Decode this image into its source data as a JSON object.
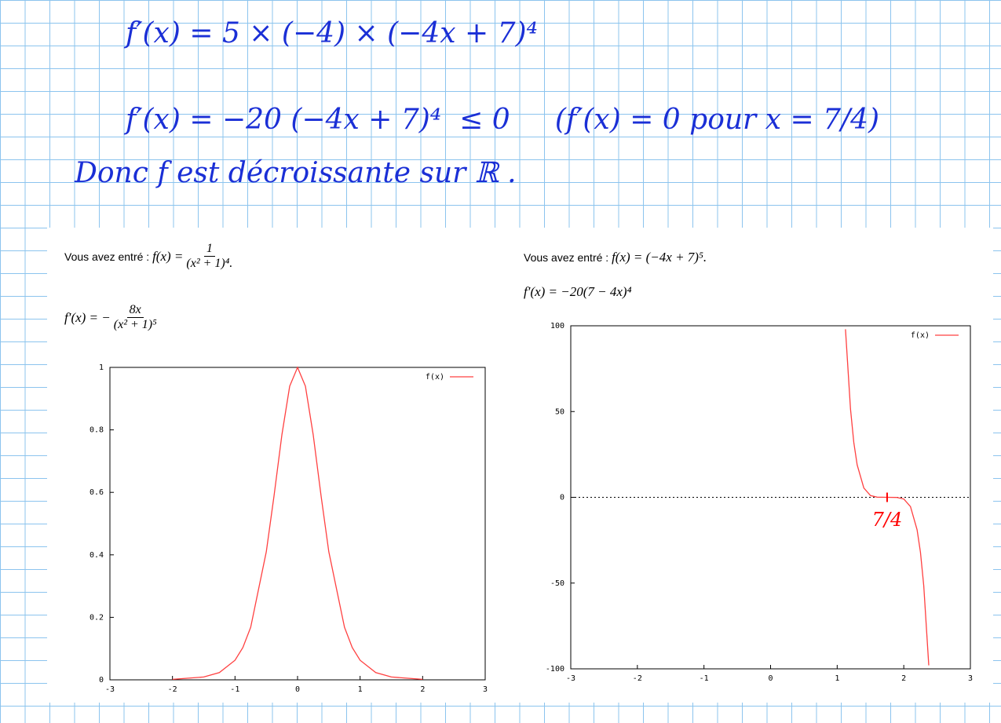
{
  "notes": {
    "lines": [
      "f′(x) = 5 × (−4) × (−4x + 7)⁴",
      "f′(x) = −20 (−4x + 7)⁴  ≤ 0     (f′(x) = 0 pour x = 7/4)",
      "Donc f est décroissante sur ℝ ."
    ]
  },
  "left_panel": {
    "intro": "Vous avez entré : ",
    "function_lhs": "f(x) =",
    "function_num": "1",
    "function_den": "(x² + 1)⁴.",
    "derivative_lhs": "f′(x) = −",
    "derivative_num": "8x",
    "derivative_den": "(x² + 1)⁵"
  },
  "right_panel": {
    "intro": "Vous avez entré : ",
    "function": "f(x) = (−4x + 7)⁵.",
    "derivative": "f′(x) = −20(7 − 4x)⁴"
  },
  "chart_data": [
    {
      "type": "line",
      "xlim": [
        -3,
        3
      ],
      "ylim": [
        0,
        1
      ],
      "xticks": [
        -3,
        -2,
        -1,
        0,
        1,
        2,
        3
      ],
      "yticks": [
        0,
        0.2,
        0.4,
        0.6,
        0.8,
        1
      ],
      "legend": "upper right",
      "series": [
        {
          "name": "f(x)",
          "color": "#ff4040",
          "x": [
            -2,
            -1.5,
            -1.25,
            -1,
            -0.875,
            -0.75,
            -0.5,
            -0.375,
            -0.25,
            -0.125,
            0,
            0.125,
            0.25,
            0.375,
            0.5,
            0.75,
            0.875,
            1,
            1.25,
            1.5,
            2
          ],
          "values": [
            0.0016,
            0.009,
            0.023,
            0.0625,
            0.103,
            0.168,
            0.41,
            0.59,
            0.785,
            0.94,
            1,
            0.94,
            0.785,
            0.59,
            0.41,
            0.168,
            0.103,
            0.0625,
            0.023,
            0.009,
            0.0016
          ]
        }
      ]
    },
    {
      "type": "line",
      "xlim": [
        -3,
        3
      ],
      "ylim": [
        -100,
        100
      ],
      "xticks": [
        -3,
        -2,
        -1,
        0,
        1,
        2,
        3
      ],
      "yticks": [
        -100,
        -50,
        0,
        50,
        100
      ],
      "legend": "upper right",
      "zero_line": true,
      "annotation": {
        "text": "7/4",
        "x": 1.75,
        "color": "#ff0000"
      },
      "series": [
        {
          "name": "f(x)",
          "color": "#ff4040",
          "x": [
            1.125,
            1.2,
            1.25,
            1.3,
            1.4,
            1.5,
            1.6,
            1.75,
            1.9,
            2,
            2.1,
            2.2,
            2.25,
            2.3,
            2.375
          ],
          "values": [
            98,
            51.5,
            32,
            18.9,
            5.4,
            1,
            0.1,
            0,
            -0.1,
            -1,
            -5.4,
            -18.9,
            -32,
            -51.5,
            -98
          ]
        }
      ]
    }
  ]
}
